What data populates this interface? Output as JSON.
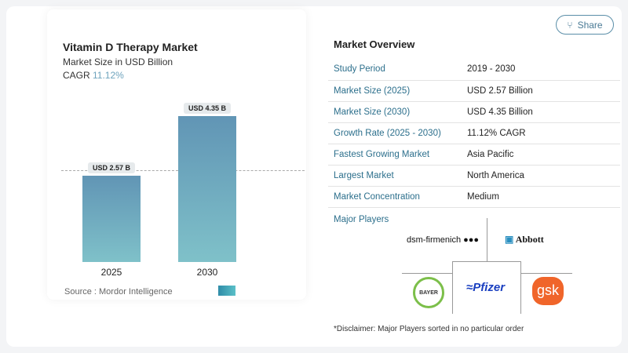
{
  "share_label": "Share",
  "chart_data": {
    "type": "bar",
    "title": "Vitamin D Therapy Market",
    "subtitle": "Market Size in USD Billion",
    "cagr_label": "CAGR",
    "cagr_value": "11.12%",
    "categories": [
      "2025",
      "2030"
    ],
    "values": [
      2.57,
      4.35
    ],
    "data_labels": [
      "USD 2.57 B",
      "USD 4.35 B"
    ],
    "ylim": [
      0,
      4.6
    ]
  },
  "source": "Source :  Mordor Intelligence",
  "overview": {
    "title": "Market Overview",
    "rows": [
      {
        "k": "Study Period",
        "v": "2019 - 2030"
      },
      {
        "k": "Market Size (2025)",
        "v": "USD 2.57 Billion"
      },
      {
        "k": "Market Size (2030)",
        "v": "USD 4.35 Billion"
      },
      {
        "k": "Growth Rate (2025 - 2030)",
        "v": "11.12% CAGR"
      },
      {
        "k": "Fastest Growing Market",
        "v": "Asia Pacific"
      },
      {
        "k": "Largest Market",
        "v": "North America"
      },
      {
        "k": "Market Concentration",
        "v": "Medium"
      }
    ]
  },
  "major_players": {
    "title": "Major Players",
    "logos": [
      "dsm-firmenich",
      "Abbott",
      "BAYER",
      "Pfizer",
      "gsk"
    ]
  },
  "disclaimer": "*Disclaimer: Major Players sorted in no particular order"
}
